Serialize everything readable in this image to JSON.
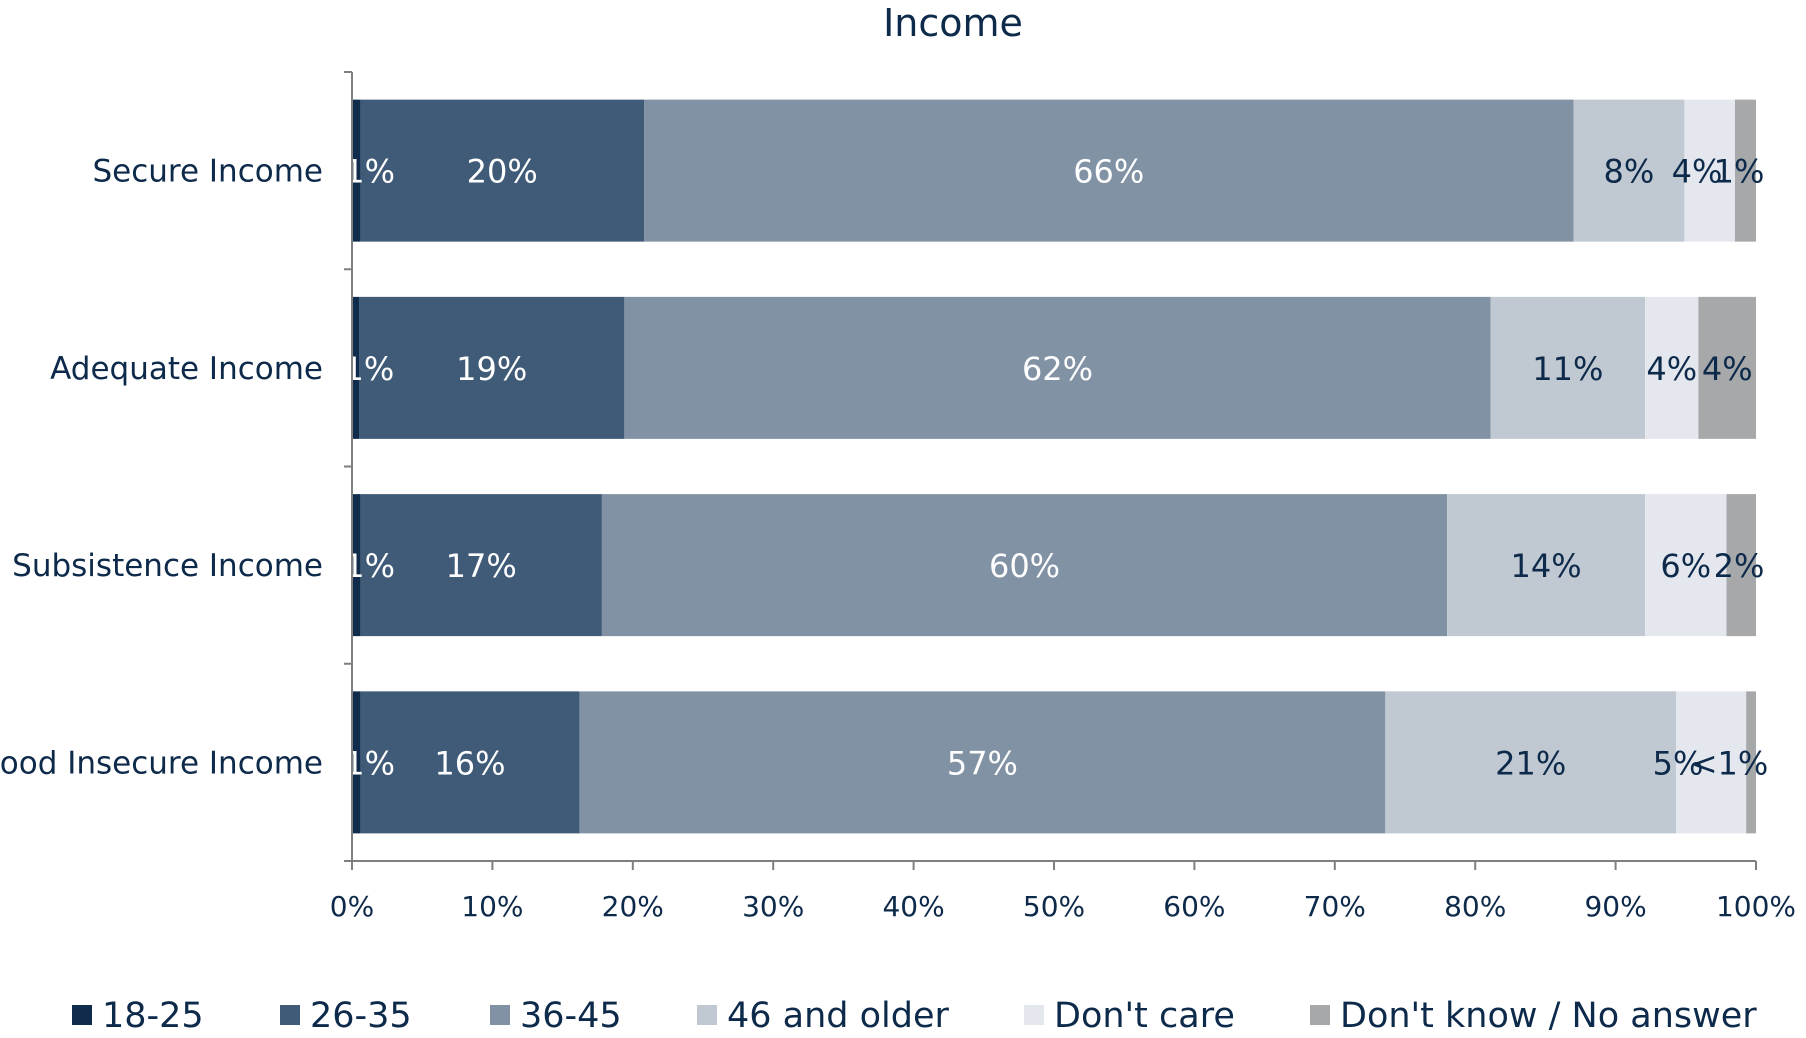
{
  "chart_data": {
    "type": "bar",
    "orientation": "horizontal",
    "stacked": true,
    "title": "Income",
    "categories": [
      "Secure Income",
      "Adequate Income",
      "Subsistence Income",
      "Food Insecure Income"
    ],
    "series": [
      {
        "name": "18-25",
        "color": "#0f2c4c",
        "values": [
          0.6,
          0.5,
          0.6,
          0.6
        ],
        "labels": [
          "<1%",
          "<1%",
          "<1%",
          "<1%"
        ],
        "label_color": "#ffffff"
      },
      {
        "name": "26-35",
        "color": "#405b78",
        "values": [
          20.2,
          18.9,
          17.2,
          15.6
        ],
        "labels": [
          "20%",
          "19%",
          "17%",
          "16%"
        ],
        "label_color": "#ffffff"
      },
      {
        "name": "36-45",
        "color": "#8192a5",
        "values": [
          66.2,
          61.7,
          60.2,
          57.4
        ],
        "labels": [
          "66%",
          "62%",
          "60%",
          "57%"
        ],
        "label_color": "#ffffff"
      },
      {
        "name": "46 and older",
        "color": "#c0c8d1",
        "values": [
          7.9,
          11.0,
          14.1,
          20.7
        ],
        "labels": [
          "8%",
          "11%",
          "14%",
          "21%"
        ],
        "label_color": "#0d2a4a"
      },
      {
        "name": "Don't care",
        "color": "#e4e8ee",
        "values": [
          3.6,
          3.8,
          5.8,
          5.0
        ],
        "labels": [
          "4%",
          "4%",
          "6%",
          "5%"
        ],
        "label_color": "#0d2a4a"
      },
      {
        "name": "Don't know / No answer",
        "color": "#a6a8aa",
        "values": [
          1.5,
          4.1,
          2.1,
          0.7
        ],
        "labels": [
          "1%",
          "4%",
          "2%",
          "<1%"
        ],
        "label_color": "#0d2a4a"
      }
    ],
    "xaxis": {
      "ticks": [
        0,
        10,
        20,
        30,
        40,
        50,
        60,
        70,
        80,
        90,
        100
      ],
      "tick_labels": [
        "0%",
        "10%",
        "20%",
        "30%",
        "40%",
        "50%",
        "60%",
        "70%",
        "80%",
        "90%",
        "100%"
      ],
      "xlim": [
        0,
        100
      ]
    },
    "grid": false,
    "legend_position": "bottom"
  }
}
